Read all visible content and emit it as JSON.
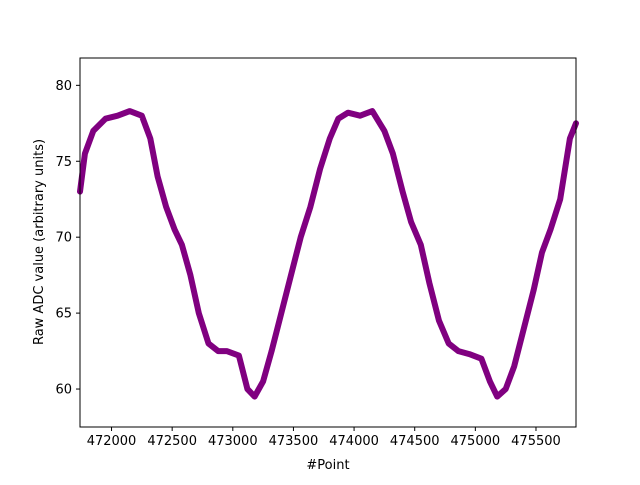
{
  "chart_data": {
    "type": "line",
    "xlabel": "#Point",
    "ylabel": "Raw ADC value (arbitrary units)",
    "xlim": [
      471740,
      475830
    ],
    "ylim": [
      57.5,
      81.8
    ],
    "xticks": [
      472000,
      472500,
      473000,
      473500,
      474000,
      474500,
      475000,
      475500
    ],
    "yticks": [
      60,
      65,
      70,
      75,
      80
    ],
    "grid": false,
    "series": [
      {
        "color": "#800080",
        "x": [
          471740,
          471780,
          471850,
          471950,
          472050,
          472150,
          472250,
          472320,
          472380,
          472450,
          472520,
          472580,
          472650,
          472720,
          472800,
          472880,
          472950,
          473050,
          473120,
          473180,
          473250,
          473320,
          473400,
          473480,
          473560,
          473640,
          473720,
          473800,
          473870,
          473950,
          474050,
          474150,
          474250,
          474320,
          474400,
          474470,
          474550,
          474620,
          474700,
          474780,
          474860,
          474950,
          475050,
          475120,
          475180,
          475250,
          475320,
          475400,
          475480,
          475550,
          475620,
          475700,
          475780,
          475830
        ],
        "y": [
          73.0,
          75.5,
          77.0,
          77.8,
          78.0,
          78.3,
          78.0,
          76.5,
          74.0,
          72.0,
          70.5,
          69.5,
          67.5,
          65.0,
          63.0,
          62.5,
          62.5,
          62.2,
          60.0,
          59.5,
          60.5,
          62.5,
          65.0,
          67.5,
          70.0,
          72.0,
          74.5,
          76.5,
          77.8,
          78.2,
          78.0,
          78.3,
          77.0,
          75.5,
          73.0,
          71.0,
          69.5,
          67.0,
          64.5,
          63.0,
          62.5,
          62.3,
          62.0,
          60.5,
          59.5,
          60.0,
          61.5,
          64.0,
          66.5,
          69.0,
          70.5,
          72.5,
          76.5,
          77.5
        ]
      }
    ]
  }
}
